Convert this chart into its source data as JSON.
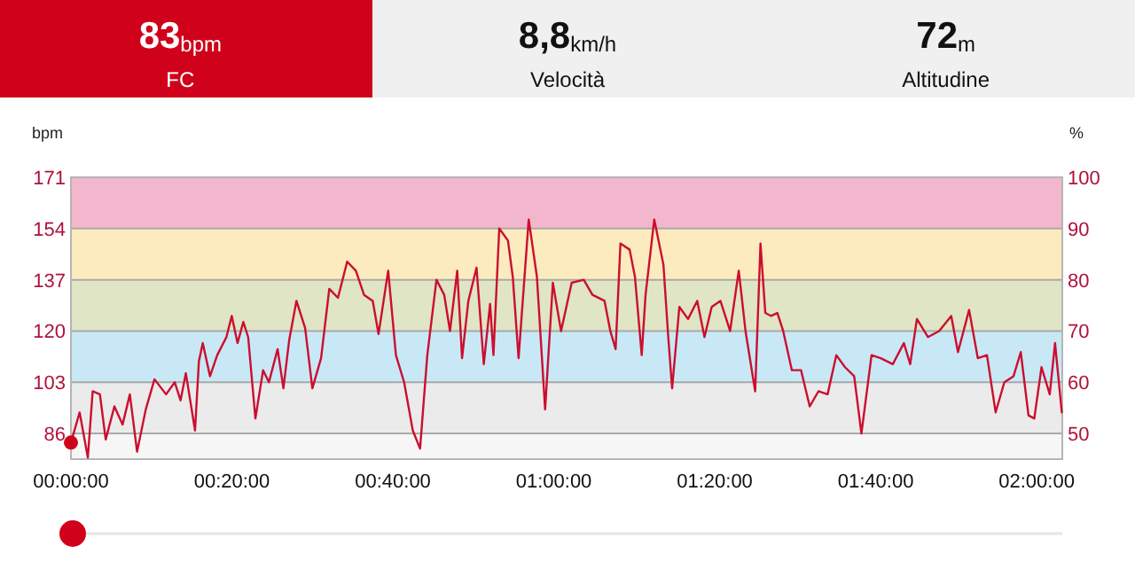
{
  "chart_data": [
    {
      "type": "other",
      "annotations": [
        "83",
        "bpm",
        "FC",
        "8,8",
        "km/h",
        "Velocità",
        "72",
        "m",
        "Altitudine"
      ]
    },
    {
      "type": "line",
      "ylabel": "bpm",
      "y2label": "%",
      "xlim": [
        0,
        2.053
      ],
      "ylim": [
        77.5,
        171
      ],
      "y2lim": [
        45,
        100
      ],
      "xticks": [
        {
          "value": 0,
          "label": "00:00:00"
        },
        {
          "value": 0.3333,
          "label": "00:20:00"
        },
        {
          "value": 0.6667,
          "label": "00:40:00"
        },
        {
          "value": 1,
          "label": "01:00:00"
        },
        {
          "value": 1.3333,
          "label": "01:20:00"
        },
        {
          "value": 1.6667,
          "label": "01:40:00"
        },
        {
          "value": 2,
          "label": "02:00:00"
        }
      ],
      "yticks": [
        86,
        103,
        120,
        137,
        154,
        171
      ],
      "y2ticks": [
        50,
        60,
        70,
        80,
        90,
        100
      ],
      "grid": "y",
      "marker": "none",
      "line_style": "solid",
      "bands": [
        {
          "axis": "y",
          "from": 77.5,
          "to": 86,
          "color": "#f6f6f6"
        },
        {
          "axis": "y",
          "from": 86,
          "to": 103,
          "color": "#ebebeb"
        },
        {
          "axis": "y",
          "from": 103,
          "to": 120,
          "color": "#c8e8f6"
        },
        {
          "axis": "y",
          "from": 120,
          "to": 137,
          "color": "#dfe5c5"
        },
        {
          "axis": "y",
          "from": 137,
          "to": 154,
          "color": "#fcebbf"
        },
        {
          "axis": "y",
          "from": 154,
          "to": 171,
          "color": "#f3b7cd"
        }
      ],
      "series": [
        {
          "color": "#cc0e2e",
          "x": [
            0,
            0.018,
            0.035,
            0.045,
            0.06,
            0.072,
            0.09,
            0.107,
            0.122,
            0.137,
            0.155,
            0.173,
            0.197,
            0.215,
            0.227,
            0.238,
            0.257,
            0.265,
            0.273,
            0.288,
            0.303,
            0.322,
            0.333,
            0.345,
            0.357,
            0.367,
            0.382,
            0.398,
            0.41,
            0.428,
            0.44,
            0.452,
            0.467,
            0.485,
            0.5,
            0.518,
            0.535,
            0.553,
            0.572,
            0.59,
            0.607,
            0.625,
            0.637,
            0.657,
            0.673,
            0.69,
            0.708,
            0.723,
            0.738,
            0.757,
            0.773,
            0.785,
            0.8,
            0.81,
            0.823,
            0.84,
            0.855,
            0.868,
            0.875,
            0.887,
            0.905,
            0.915,
            0.927,
            0.948,
            0.965,
            0.982,
            0.998,
            1.015,
            1.037,
            1.062,
            1.08,
            1.105,
            1.117,
            1.128,
            1.138,
            1.157,
            1.168,
            1.182,
            1.19,
            1.208,
            1.227,
            1.237,
            1.245,
            1.26,
            1.278,
            1.297,
            1.312,
            1.327,
            1.345,
            1.365,
            1.383,
            1.397,
            1.417,
            1.428,
            1.438,
            1.45,
            1.463,
            1.475,
            1.493,
            1.512,
            1.53,
            1.548,
            1.567,
            1.585,
            1.603,
            1.622,
            1.637,
            1.658,
            1.677,
            1.702,
            1.725,
            1.738,
            1.752,
            1.775,
            1.798,
            1.823,
            1.837,
            1.86,
            1.878,
            1.897,
            1.915,
            1.933,
            1.952,
            1.967,
            1.983,
            1.995,
            2.01,
            2.027,
            2.038,
            2.052
          ],
          "values": [
            83,
            93,
            78,
            100,
            99,
            84,
            95,
            89,
            99,
            80,
            94,
            104,
            99,
            103,
            97,
            106,
            87,
            110,
            116,
            105,
            112,
            118,
            125,
            116,
            123,
            118,
            91,
            107,
            103,
            114,
            101,
            117,
            130,
            121,
            101,
            111,
            134,
            131,
            143,
            140,
            132,
            130,
            119,
            140,
            112,
            103,
            87,
            81,
            112,
            137,
            132,
            120,
            140,
            111,
            130,
            141,
            109,
            129,
            112,
            154,
            150,
            138,
            111,
            157,
            138,
            94,
            136,
            120,
            136,
            137,
            132,
            130,
            120,
            114,
            149,
            147,
            138,
            112,
            132,
            157,
            142,
            118,
            101,
            128,
            124,
            130,
            118,
            128,
            130,
            120,
            140,
            120,
            100,
            149,
            126,
            125,
            126,
            120,
            107,
            107,
            95,
            100,
            99,
            112,
            108,
            105,
            86,
            112,
            111,
            109,
            116,
            109,
            124,
            118,
            120,
            125,
            113,
            127,
            111,
            112,
            93,
            103,
            105,
            113,
            92,
            91,
            108,
            99,
            116,
            93
          ]
        }
      ]
    }
  ]
}
